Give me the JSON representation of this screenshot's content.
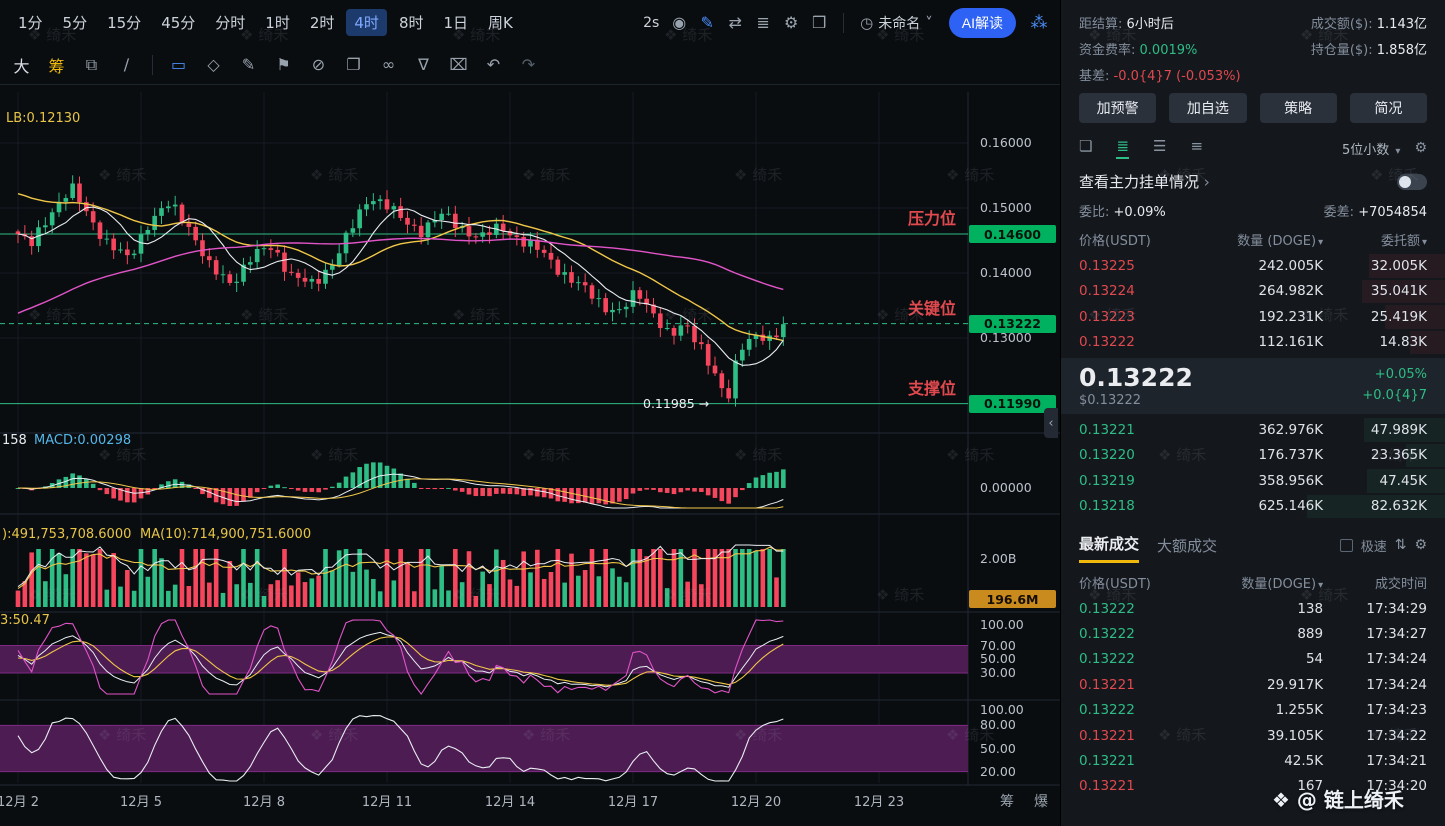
{
  "toolbar": {
    "timeframes": [
      "1分",
      "5分",
      "15分",
      "45分",
      "分时",
      "1时",
      "2时",
      "4时",
      "8时",
      "1日",
      "周K"
    ],
    "active_timeframe": "4时",
    "speed_label": "2s",
    "icons": [
      {
        "name": "camera-icon",
        "glyph": "◉"
      },
      {
        "name": "draw-pencil-icon",
        "glyph": "✎",
        "color": "#4b8df8"
      },
      {
        "name": "replay-icon",
        "glyph": "⇄"
      },
      {
        "name": "objects-tree-icon",
        "glyph": "≣"
      },
      {
        "name": "chart-settings-icon",
        "glyph": "⚙"
      },
      {
        "name": "fullscreen-icon",
        "glyph": "❒"
      }
    ],
    "layout_name": "未命名",
    "ai_button_label": "AI解读"
  },
  "draw_toolbar": {
    "tools": [
      {
        "name": "text-size-tool-icon",
        "glyph": "大",
        "color": "#d8dde6"
      },
      {
        "name": "chip-distribution-tool-icon",
        "glyph": "筹",
        "color": "#f0b90b"
      },
      {
        "name": "template-edit-icon",
        "glyph": "⧉",
        "color": "#98a2ad"
      },
      {
        "name": "trendline-tool-icon",
        "glyph": "∕",
        "color": "#98a2ad"
      },
      {
        "name": "separator"
      },
      {
        "name": "rect-tool-icon",
        "glyph": "▭",
        "color": "#4b8df8"
      },
      {
        "name": "rhombus-tool-icon",
        "glyph": "◇",
        "color": "#98a2ad"
      },
      {
        "name": "pencil-tool-icon",
        "glyph": "✎",
        "color": "#98a2ad"
      },
      {
        "name": "flag-tool-icon",
        "glyph": "⚑",
        "color": "#98a2ad"
      },
      {
        "name": "lock-tool-icon",
        "glyph": "⊘",
        "color": "#98a2ad"
      },
      {
        "name": "doc-tool-icon",
        "glyph": "❐",
        "color": "#98a2ad"
      },
      {
        "name": "link-tool-icon",
        "glyph": "∞",
        "color": "#98a2ad"
      },
      {
        "name": "filter-tool-icon",
        "glyph": "∇",
        "color": "#98a2ad"
      },
      {
        "name": "delete-tool-icon",
        "glyph": "⌧",
        "color": "#98a2ad"
      },
      {
        "name": "undo-icon",
        "glyph": "↶",
        "color": "#98a2ad"
      },
      {
        "name": "redo-icon",
        "glyph": "↷",
        "color": "#555f6a"
      }
    ]
  },
  "icons": {
    "caret_down": "▾",
    "caret_small": "˅",
    "chevron_right": "›",
    "chevron_left": "‹",
    "layout_clock": "◷",
    "share": "⁂",
    "gear": "⚙",
    "sort": "⇅"
  },
  "chart": {
    "indicator_labels": {
      "boll": "LB:0.12130",
      "macd_prefix": "158",
      "macd": "MACD:0.00298",
      "vol_part1": "):491,753,708.6000",
      "vol_part2": "MA(10):714,900,751.6000",
      "kdj": "3:50.47"
    },
    "levels": [
      {
        "label": "压力位",
        "price": "0.14600"
      },
      {
        "label": "关键位",
        "price": "0.13222"
      },
      {
        "label": "支撑位",
        "price": "0.11990"
      }
    ],
    "low_annotation": "0.11985 →",
    "price_axis": [
      "0.16000",
      "0.15000",
      "0.14000",
      "0.13000"
    ],
    "macd_axis": [
      "0.00000"
    ],
    "vol_axis": [
      "2.00B"
    ],
    "vol_badge": "196.6M",
    "kdj_axis": [
      "100.00",
      "70.00",
      "50.00",
      "30.00"
    ],
    "wr_axis": [
      "100.00",
      "80.00",
      "50.00",
      "20.00"
    ],
    "x_axis": [
      "12月 2",
      "12月 5",
      "12月 8",
      "12月 11",
      "12月 14",
      "12月 17",
      "12月 20",
      "12月 23"
    ],
    "axis_buttons": [
      {
        "label": "筹",
        "name": "chip-distribution-button"
      },
      {
        "label": "爆",
        "name": "liquidation-map-button"
      }
    ],
    "chart_data": {
      "type": "candlestick",
      "interval": "4h",
      "price_range_visible": [
        0.1199,
        0.155
      ],
      "key_levels": {
        "resistance": 0.146,
        "key": 0.13222,
        "support": 0.1199
      },
      "last_price": 0.13222,
      "low_marker": 0.11985,
      "price_keyframes": [
        [
          0,
          0.146
        ],
        [
          0.3,
          0.144
        ],
        [
          0.8,
          0.1495
        ],
        [
          1.3,
          0.153
        ],
        [
          1.7,
          0.149
        ],
        [
          2.2,
          0.1445
        ],
        [
          2.7,
          0.142
        ],
        [
          3.2,
          0.148
        ],
        [
          3.7,
          0.1505
        ],
        [
          4.2,
          0.147
        ],
        [
          4.7,
          0.1405
        ],
        [
          5.2,
          0.1385
        ],
        [
          5.7,
          0.1425
        ],
        [
          6.2,
          0.144
        ],
        [
          6.7,
          0.1395
        ],
        [
          7.2,
          0.138
        ],
        [
          7.7,
          0.142
        ],
        [
          8.2,
          0.1475
        ],
        [
          8.6,
          0.152
        ],
        [
          9,
          0.1505
        ],
        [
          9.4,
          0.1478
        ],
        [
          9.8,
          0.1465
        ],
        [
          10.3,
          0.149
        ],
        [
          10.8,
          0.147
        ],
        [
          11.3,
          0.1455
        ],
        [
          11.8,
          0.147
        ],
        [
          12.3,
          0.145
        ],
        [
          12.8,
          0.143
        ],
        [
          13.3,
          0.14
        ],
        [
          13.8,
          0.1375
        ],
        [
          14.3,
          0.135
        ],
        [
          14.7,
          0.134
        ],
        [
          15.1,
          0.137
        ],
        [
          15.5,
          0.134
        ],
        [
          15.9,
          0.13
        ],
        [
          16.3,
          0.132
        ],
        [
          16.7,
          0.1285
        ],
        [
          17,
          0.124
        ],
        [
          17.3,
          0.1199
        ],
        [
          17.6,
          0.129
        ],
        [
          18,
          0.1305
        ],
        [
          18.3,
          0.129
        ],
        [
          18.7,
          0.1322
        ]
      ]
    }
  },
  "right_panel": {
    "stats": {
      "settle_label": "距结算:",
      "settle_value": "6小时后",
      "turnover_label": "成交额($):",
      "turnover_value": "1.143亿",
      "funding_label": "资金费率:",
      "funding_value": "0.0019%",
      "oi_label": "持仓量($):",
      "oi_value": "1.858亿",
      "basis_label": "基差:",
      "basis_value": "-0.0{4}7 (-0.053%)"
    },
    "action_buttons": [
      {
        "label": "加预警",
        "name": "add-alert-button"
      },
      {
        "label": "加自选",
        "name": "add-watchlist-button"
      },
      {
        "label": "策略",
        "name": "strategy-button"
      },
      {
        "label": "简况",
        "name": "overview-button"
      }
    ],
    "view_icons": [
      {
        "name": "layout-switch-icon",
        "glyph": "❏"
      },
      {
        "name": "depth-both-icon",
        "glyph": "≣",
        "active": true
      },
      {
        "name": "depth-list-icon",
        "glyph": "☰"
      },
      {
        "name": "depth-cumulative-icon",
        "glyph": "≡"
      }
    ],
    "decimal_selector": "5位小数",
    "main_orders_link": "查看主力挂单情况",
    "ratio_label": "委比:",
    "ratio_value": "+0.09%",
    "diff_label": "委差:",
    "diff_value": "+7054854",
    "orderbook": {
      "headers": [
        "价格(USDT)",
        "数量 (DOGE)",
        "委托额"
      ],
      "asks": [
        [
          "0.13225",
          "242.005K",
          "32.005K"
        ],
        [
          "0.13224",
          "264.982K",
          "35.041K"
        ],
        [
          "0.13223",
          "192.231K",
          "25.419K"
        ],
        [
          "0.13222",
          "112.161K",
          "14.83K"
        ]
      ],
      "asks_depth": [
        0.33,
        0.36,
        0.26,
        0.15
      ],
      "last_price": "0.13222",
      "last_price_usd": "$0.13222",
      "change_pct": "+0.05%",
      "change_abs": "+0.0{4}7",
      "bids": [
        [
          "0.13221",
          "362.976K",
          "47.989K"
        ],
        [
          "0.13220",
          "176.737K",
          "23.365K"
        ],
        [
          "0.13219",
          "358.956K",
          "47.45K"
        ],
        [
          "0.13218",
          "625.146K",
          "82.632K"
        ]
      ],
      "bids_depth": [
        0.35,
        0.17,
        0.34,
        0.6
      ]
    },
    "trades": {
      "tabs": [
        "最新成交",
        "大额成交"
      ],
      "fast_label": "极速",
      "headers": [
        "价格(USDT)",
        "数量(DOGE)",
        "成交时间"
      ],
      "rows": [
        {
          "price": "0.13222",
          "qty": "138",
          "time": "17:34:29",
          "side": "up"
        },
        {
          "price": "0.13222",
          "qty": "889",
          "time": "17:34:27",
          "side": "up"
        },
        {
          "price": "0.13222",
          "qty": "54",
          "time": "17:34:24",
          "side": "up"
        },
        {
          "price": "0.13221",
          "qty": "29.917K",
          "time": "17:34:24",
          "side": "down"
        },
        {
          "price": "0.13222",
          "qty": "1.255K",
          "time": "17:34:23",
          "side": "up"
        },
        {
          "price": "0.13221",
          "qty": "39.105K",
          "time": "17:34:22",
          "side": "down"
        },
        {
          "price": "0.13221",
          "qty": "42.5K",
          "time": "17:34:21",
          "side": "up"
        },
        {
          "price": "0.13221",
          "qty": "167",
          "time": "17:34:20",
          "side": "down"
        }
      ]
    }
  },
  "watermark": {
    "tile": "绮禾",
    "logo": "❖",
    "badge": "@ 链上绮禾"
  }
}
